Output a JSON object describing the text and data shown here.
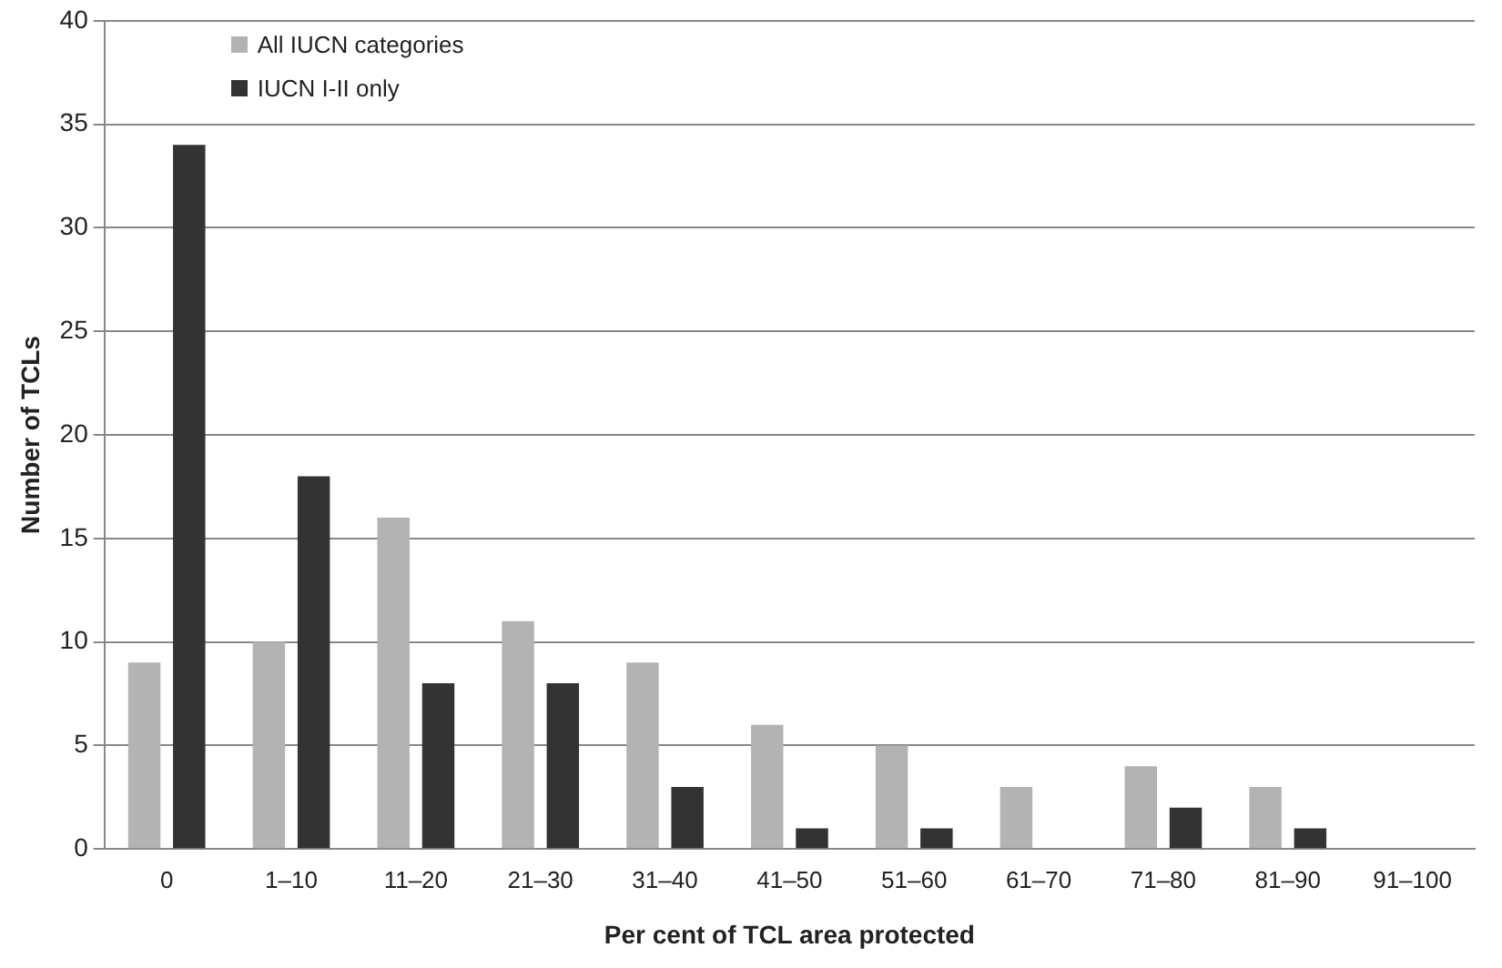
{
  "chart_data": {
    "type": "bar",
    "xlabel": "Per cent of TCL area protected",
    "ylabel": "Number of TCLs",
    "categories": [
      "0",
      "1–10",
      "11–20",
      "21–30",
      "31–40",
      "41–50",
      "51–60",
      "61–70",
      "71–80",
      "81–90",
      "91–100"
    ],
    "series": [
      {
        "name": "All IUCN categories",
        "color": "#b3b3b3",
        "values": [
          9,
          10,
          16,
          11,
          9,
          6,
          5,
          3,
          4,
          3,
          0
        ]
      },
      {
        "name": "IUCN I-II only",
        "color": "#333333",
        "values": [
          34,
          18,
          8,
          8,
          3,
          1,
          1,
          0,
          2,
          1,
          0
        ]
      }
    ],
    "ylim": [
      0,
      40
    ],
    "yticks": [
      0,
      5,
      10,
      15,
      20,
      25,
      30,
      35,
      40
    ],
    "grid": "y",
    "legend": "top left"
  }
}
